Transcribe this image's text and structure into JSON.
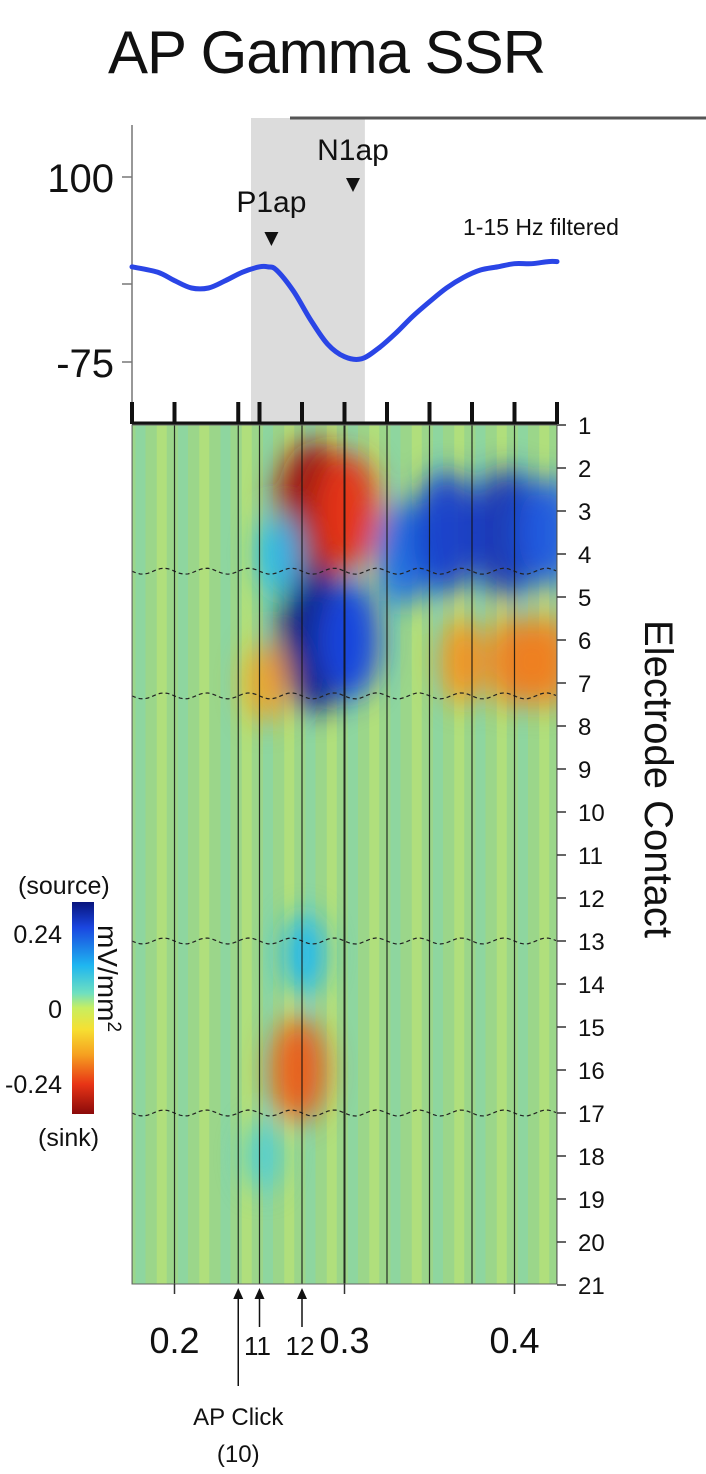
{
  "title": "AP Gamma SSR",
  "chart_data": [
    {
      "type": "line",
      "panel": "average evoked potential",
      "filter_label": "1-15 Hz filtered",
      "y_ticks": [
        100,
        -75
      ],
      "ylim": [
        -110,
        125
      ],
      "peaks": [
        {
          "name": "P1ap",
          "x": 0.257
        },
        {
          "name": "N1ap",
          "x": 0.305
        }
      ],
      "shaded_window": [
        0.245,
        0.312
      ],
      "series": [
        {
          "x": [
            0.175,
            0.19,
            0.2,
            0.21,
            0.22,
            0.23,
            0.24,
            0.25,
            0.255,
            0.26,
            0.27,
            0.28,
            0.29,
            0.3,
            0.31,
            0.32,
            0.33,
            0.34,
            0.35,
            0.36,
            0.37,
            0.38,
            0.39,
            0.4,
            0.41,
            0.42,
            0.425
          ],
          "y": [
            15,
            10,
            2,
            -5,
            -5,
            2,
            10,
            15,
            15,
            12,
            -8,
            -35,
            -58,
            -70,
            -72,
            -62,
            -48,
            -32,
            -18,
            -5,
            5,
            12,
            15,
            18,
            18,
            20,
            20
          ]
        }
      ]
    },
    {
      "type": "heatmap",
      "panel": "current source density",
      "x_ticks": [
        0.2,
        0.3,
        0.4
      ],
      "xlim": [
        0.175,
        0.425
      ],
      "y_label": "Electrode Contact",
      "y_ticks": [
        1,
        2,
        3,
        4,
        5,
        6,
        7,
        8,
        9,
        10,
        11,
        12,
        13,
        14,
        15,
        16,
        17,
        18,
        19,
        20,
        21
      ],
      "colorbar": {
        "label": "mV/mm",
        "label_exponent": "2",
        "ticks": [
          0.24,
          0,
          -0.24
        ],
        "tick_labels": [
          "0.24",
          "0",
          "-0.24"
        ],
        "top_label": "(source)",
        "bottom_label": "(sink)"
      },
      "click_times": [
        0.175,
        0.2,
        0.2375,
        0.25,
        0.275,
        0.3,
        0.325,
        0.35,
        0.375,
        0.4,
        0.425
      ],
      "annotated_clicks": [
        {
          "label": "AP Click",
          "number": "(10)",
          "x": 0.2375
        },
        {
          "label": "11",
          "x": 0.25
        },
        {
          "label": "12",
          "x": 0.275
        }
      ],
      "layer_boundaries": [
        4.4,
        7.3,
        13.0,
        17.0
      ],
      "blobs": [
        {
          "contact": 3,
          "time": 0.282,
          "value": -0.32
        },
        {
          "contact": 3,
          "time": 0.302,
          "value": -0.24
        },
        {
          "contact": 6,
          "time": 0.284,
          "value": 0.33
        },
        {
          "contact": 6,
          "time": 0.303,
          "value": 0.24
        },
        {
          "contact": 4,
          "time": 0.262,
          "value": 0.12
        },
        {
          "contact": 4,
          "time": 0.335,
          "value": 0.2
        },
        {
          "contact": 3.5,
          "time": 0.36,
          "value": 0.26
        },
        {
          "contact": 3.5,
          "time": 0.395,
          "value": 0.28
        },
        {
          "contact": 3.5,
          "time": 0.42,
          "value": 0.22
        },
        {
          "contact": 7,
          "time": 0.254,
          "value": -0.12
        },
        {
          "contact": 6.5,
          "time": 0.37,
          "value": -0.14
        },
        {
          "contact": 6.5,
          "time": 0.4,
          "value": -0.16
        },
        {
          "contact": 6.5,
          "time": 0.42,
          "value": -0.16
        },
        {
          "contact": 16,
          "time": 0.273,
          "value": -0.2
        },
        {
          "contact": 13.3,
          "time": 0.276,
          "value": 0.12
        },
        {
          "contact": 18,
          "time": 0.252,
          "value": 0.08
        }
      ]
    }
  ]
}
